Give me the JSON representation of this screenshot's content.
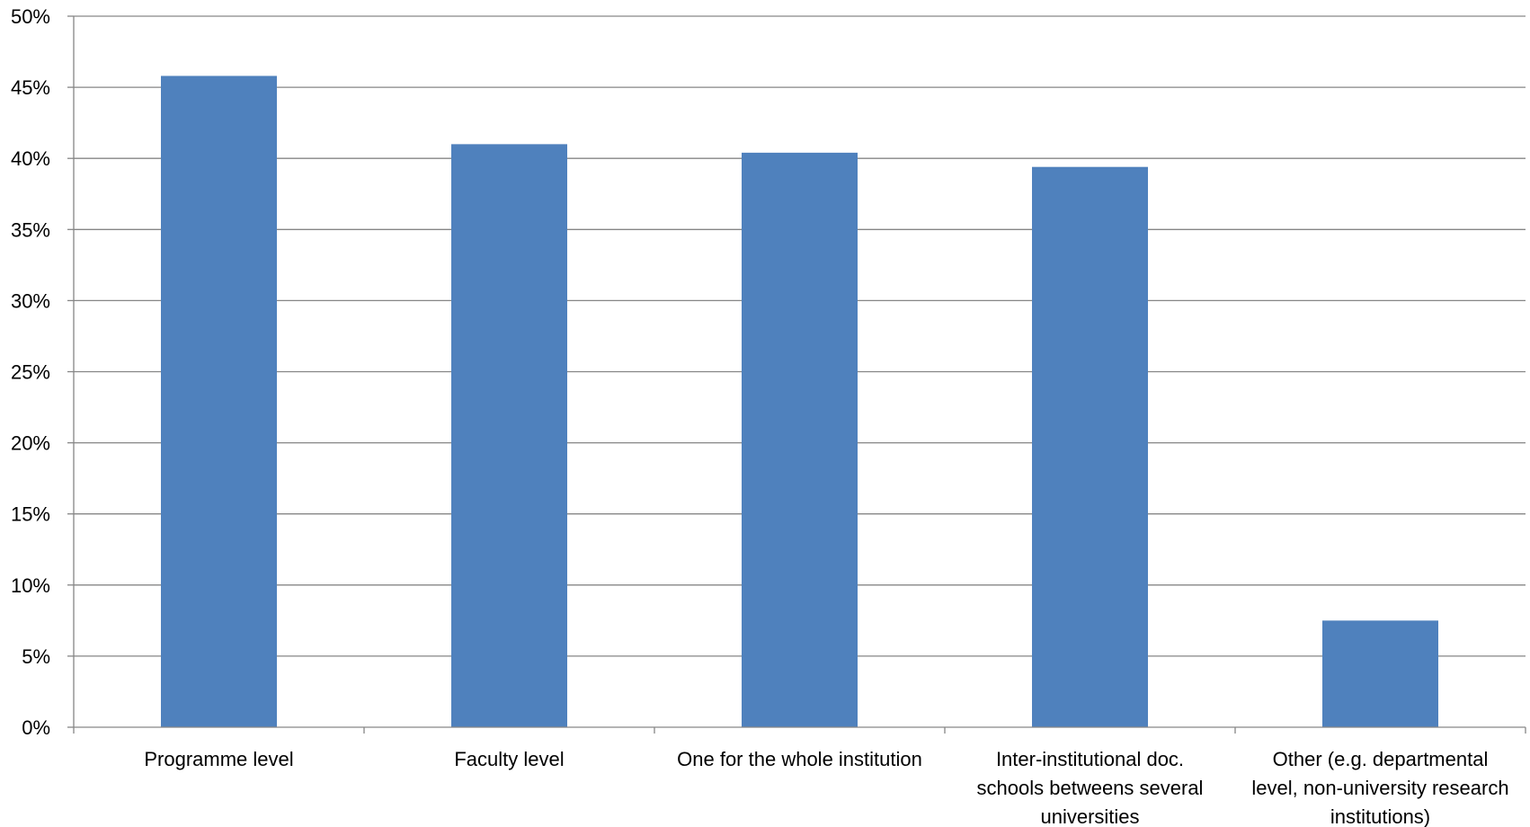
{
  "chart_data": {
    "type": "bar",
    "categories": [
      [
        "Programme level"
      ],
      [
        "Faculty level"
      ],
      [
        "One for the whole institution"
      ],
      [
        "Inter-institutional doc.",
        "schools betweens several",
        "universities"
      ],
      [
        "Other (e.g. departmental",
        "level, non-university research",
        "institutions)"
      ]
    ],
    "values": [
      45.8,
      41.0,
      40.4,
      39.4,
      7.5
    ],
    "yticks": [
      "0%",
      "5%",
      "10%",
      "15%",
      "20%",
      "25%",
      "30%",
      "35%",
      "40%",
      "45%",
      "50%"
    ],
    "ylim": [
      0,
      50
    ],
    "title": "",
    "xlabel": "",
    "ylabel": "",
    "grid": true,
    "colors": {
      "bar": "#4F81BD",
      "grid": "#868686",
      "axis": "#868686"
    }
  }
}
